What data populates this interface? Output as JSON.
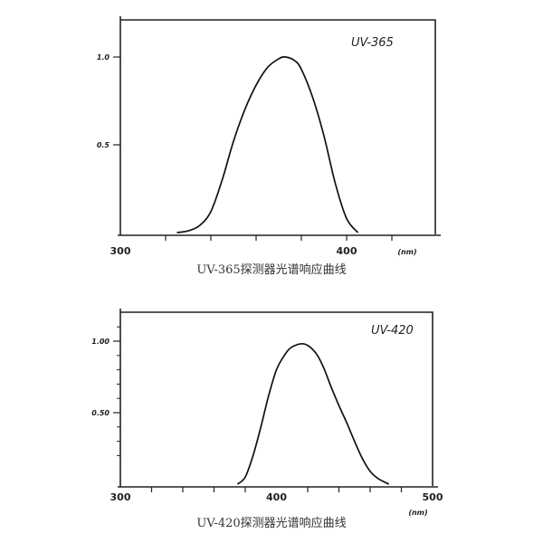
{
  "chart_data": [
    {
      "type": "line",
      "title": "UV-365",
      "caption": "UV-365探测器光谱响应曲线",
      "xlabel": "(nm)",
      "xlim": [
        300,
        430
      ],
      "ylim": [
        0,
        1.2
      ],
      "xticks_labeled": [
        300,
        400
      ],
      "xticks_minor": [
        320,
        340,
        360,
        380,
        400,
        420
      ],
      "yticks": [
        {
          "v": 0.5,
          "label": "0.5"
        },
        {
          "v": 1.0,
          "label": "1.0"
        }
      ],
      "yticks_minor": [],
      "grid": false,
      "x": [
        325,
        330,
        335,
        340,
        345,
        350,
        355,
        360,
        365,
        370,
        373,
        377,
        380,
        385,
        390,
        395,
        400,
        405
      ],
      "y": [
        0,
        0.01,
        0.04,
        0.12,
        0.3,
        0.52,
        0.7,
        0.84,
        0.94,
        0.99,
        1.0,
        0.98,
        0.93,
        0.77,
        0.55,
        0.28,
        0.08,
        0
      ]
    },
    {
      "type": "line",
      "title": "UV-420",
      "caption": "UV-420探测器光谱响应曲线",
      "xlabel": "(nm)",
      "xlim": [
        300,
        500
      ],
      "ylim": [
        0,
        1.2
      ],
      "xticks_labeled": [
        300,
        400,
        500
      ],
      "xticks_minor": [
        320,
        340,
        360,
        380,
        420,
        440,
        460,
        480
      ],
      "yticks": [
        {
          "v": 0.5,
          "label": "0.50"
        },
        {
          "v": 1.0,
          "label": "1.00"
        }
      ],
      "yticks_minor": [
        0.2,
        0.3,
        0.4,
        0.6,
        0.7,
        0.8,
        0.9,
        1.1
      ],
      "grid": false,
      "x": [
        375,
        380,
        385,
        390,
        395,
        400,
        405,
        410,
        418,
        425,
        430,
        435,
        440,
        445,
        450,
        455,
        460,
        465,
        472
      ],
      "y": [
        0,
        0.05,
        0.2,
        0.4,
        0.62,
        0.8,
        0.9,
        0.96,
        0.98,
        0.92,
        0.82,
        0.68,
        0.55,
        0.43,
        0.3,
        0.18,
        0.09,
        0.04,
        0
      ]
    }
  ]
}
